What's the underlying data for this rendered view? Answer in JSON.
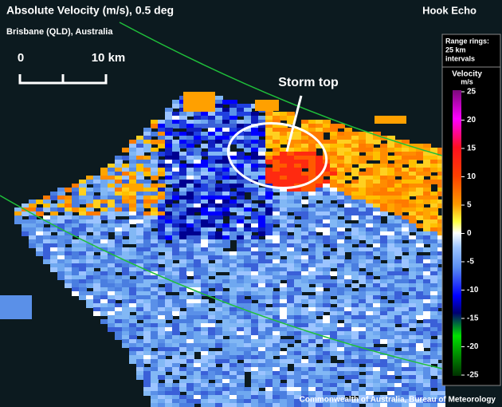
{
  "header": {
    "title": "Absolute Velocity (m/s), 0.5 deg",
    "subtitle": "Brisbane (QLD), Australia",
    "label": "Hook Echo"
  },
  "scale_bar": {
    "start": "0",
    "end": "10 km"
  },
  "annotation": "Storm top",
  "legend": {
    "range_rings": [
      "Range rings:",
      "25 km",
      "intervals"
    ],
    "title": [
      "Velocity",
      "m/s"
    ],
    "lim": [
      -25,
      25
    ],
    "ticks": [
      25,
      20,
      15,
      10,
      5,
      0,
      -5,
      -10,
      -15,
      -20,
      -25
    ]
  },
  "credit": "Commonwealth of Australia, Bureau of Meteorology"
}
